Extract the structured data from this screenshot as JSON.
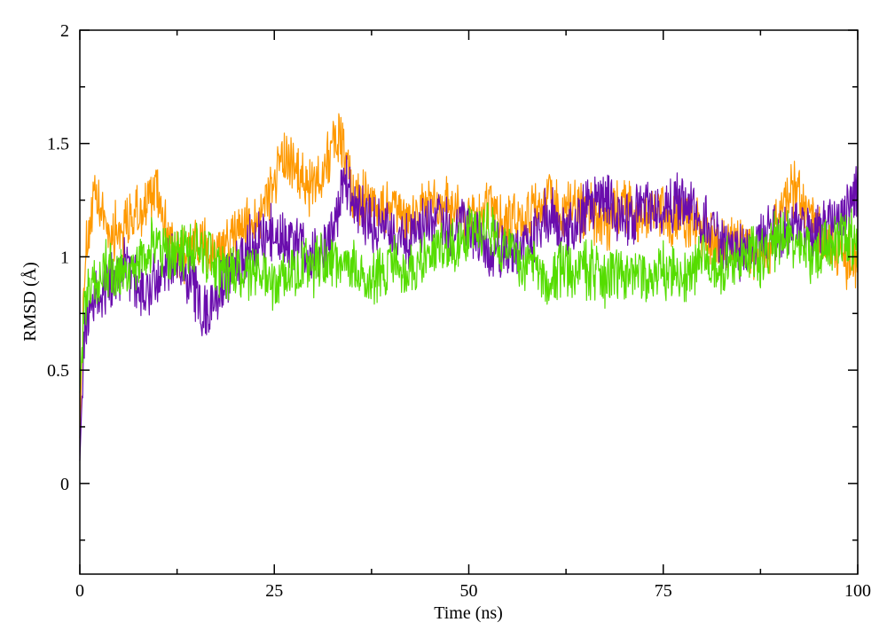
{
  "chart_data": {
    "type": "line",
    "title": "",
    "xlabel": "Time (ns)",
    "ylabel": "RMSD (Å)",
    "xlim": [
      0,
      100
    ],
    "ylim": [
      -0.4,
      2
    ],
    "x_ticks": [
      0,
      25,
      50,
      75,
      100
    ],
    "y_ticks": [
      0,
      0.5,
      1,
      1.5,
      2
    ],
    "x_tick_labels": [
      "0",
      "25",
      "50",
      "75",
      "100"
    ],
    "y_tick_labels": [
      "0",
      "0.5",
      "1",
      "1.5",
      "2"
    ],
    "grid": false,
    "legend": "none",
    "series": [
      {
        "color": "#ff9900",
        "x": [
          0,
          0.5,
          1,
          2,
          4,
          6,
          8,
          10,
          12,
          15,
          18,
          20,
          22,
          24,
          26,
          28,
          30,
          32,
          33.5,
          35,
          37,
          40,
          42,
          45,
          48,
          50,
          52,
          55,
          58,
          60,
          62,
          65,
          68,
          70,
          72,
          75,
          78,
          80,
          82,
          85,
          88,
          90,
          92,
          95,
          98,
          100
        ],
        "values": [
          0.2,
          0.9,
          1.1,
          1.25,
          1.1,
          1.15,
          1.2,
          1.3,
          1.0,
          1.05,
          1.0,
          1.1,
          1.15,
          1.25,
          1.45,
          1.35,
          1.3,
          1.45,
          1.55,
          1.3,
          1.25,
          1.2,
          1.15,
          1.25,
          1.2,
          1.15,
          1.2,
          1.15,
          1.2,
          1.25,
          1.2,
          1.2,
          1.15,
          1.25,
          1.15,
          1.2,
          1.15,
          1.1,
          1.05,
          1.1,
          0.95,
          1.2,
          1.3,
          1.1,
          1.0,
          1.0
        ]
      },
      {
        "color": "#6a0dad",
        "x": [
          0,
          0.5,
          1,
          2,
          4,
          6,
          8,
          10,
          12,
          14,
          16,
          18,
          20,
          22,
          25,
          28,
          30,
          32,
          34,
          35,
          37,
          40,
          42,
          45,
          48,
          50,
          52,
          55,
          58,
          60,
          62,
          65,
          68,
          70,
          72,
          75,
          78,
          80,
          82,
          85,
          88,
          90,
          92,
          95,
          98,
          100
        ],
        "values": [
          0.1,
          0.6,
          0.75,
          0.8,
          0.9,
          0.95,
          0.85,
          0.9,
          1.0,
          0.9,
          0.75,
          0.85,
          0.95,
          1.05,
          1.1,
          1.05,
          1.0,
          1.05,
          1.35,
          1.25,
          1.15,
          1.1,
          1.05,
          1.15,
          1.1,
          1.15,
          1.05,
          1.0,
          1.05,
          1.2,
          1.1,
          1.2,
          1.25,
          1.15,
          1.2,
          1.2,
          1.25,
          1.15,
          1.1,
          1.0,
          1.1,
          1.1,
          1.15,
          1.1,
          1.2,
          1.3
        ]
      },
      {
        "color": "#55dd00",
        "x": [
          0,
          0.5,
          1,
          2,
          4,
          6,
          8,
          10,
          12,
          15,
          18,
          20,
          22,
          25,
          28,
          30,
          32,
          35,
          38,
          40,
          42,
          45,
          48,
          50,
          52,
          55,
          58,
          60,
          62,
          65,
          68,
          70,
          72,
          75,
          78,
          80,
          82,
          85,
          88,
          90,
          92,
          95,
          98,
          100
        ],
        "values": [
          0.4,
          0.75,
          0.85,
          0.9,
          0.95,
          0.9,
          1.0,
          1.05,
          1.0,
          1.05,
          0.95,
          0.9,
          0.95,
          0.9,
          0.95,
          0.95,
          1.0,
          0.95,
          0.9,
          0.95,
          0.95,
          1.0,
          1.05,
          1.1,
          1.15,
          1.0,
          0.95,
          0.9,
          0.95,
          0.95,
          0.9,
          0.95,
          0.9,
          0.95,
          0.9,
          1.0,
          0.95,
          1.0,
          1.0,
          1.1,
          1.05,
          1.0,
          1.1,
          1.05
        ]
      }
    ]
  }
}
